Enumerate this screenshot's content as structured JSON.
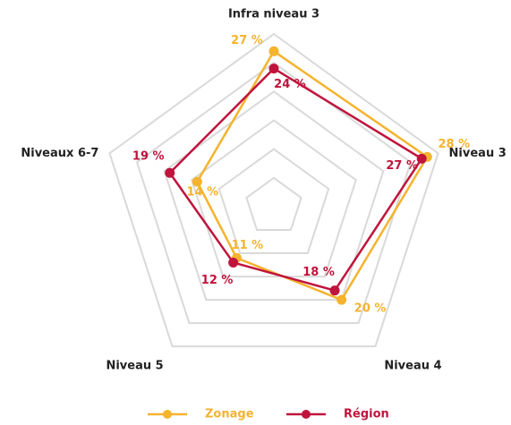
{
  "chart_data": {
    "type": "radar",
    "categories": [
      "Infra niveau 3",
      "Niveau 3",
      "Niveau 4",
      "Niveau 5",
      "Niveaux 6-7"
    ],
    "series": [
      {
        "name": "Zonage",
        "color": "#f5b32e",
        "values": [
          27,
          28,
          20,
          11,
          14
        ],
        "value_labels": [
          "27 %",
          "28 %",
          "20 %",
          "11 %",
          "14 %"
        ]
      },
      {
        "name": "Région",
        "color": "#c0143c",
        "values": [
          24,
          27,
          18,
          12,
          19
        ],
        "value_labels": [
          "24 %",
          "27 %",
          "18 %",
          "12 %",
          "19 %"
        ]
      }
    ],
    "ylim": [
      0,
      30
    ],
    "yticks": [
      5,
      10,
      15,
      20,
      25,
      30
    ],
    "grid": true,
    "legend": "bottom"
  }
}
